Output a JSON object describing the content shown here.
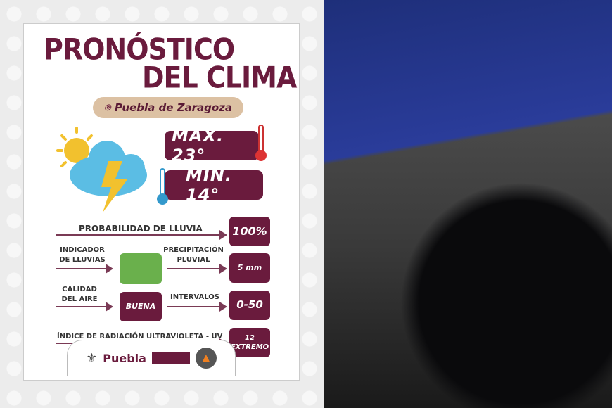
{
  "title": {
    "line1": "PRONÓSTICO",
    "line2": "DEL CLIMA"
  },
  "location": "Puebla de Zaragoza",
  "temperature": {
    "max": "MÁX. 23°",
    "min": "MÍN. 14°"
  },
  "rows": {
    "rain_probability": {
      "label": "PROBABILIDAD DE LLUVIA",
      "value": "100%"
    },
    "rain_indicator": {
      "label": "INDICADOR DE LLUVIAS",
      "color": "#6ab04c"
    },
    "precipitation": {
      "label": "PRECIPITACIÓN PLUVIAL",
      "value": "5 mm"
    },
    "air_quality": {
      "label": "CALIDAD DEL AIRE",
      "value": "BUENA"
    },
    "intervals": {
      "label": "INTERVALOS",
      "value": "0-50"
    },
    "uv": {
      "label": "ÍNDICE DE RADIACIÓN ULTRAVIOLETA - UV",
      "value": "12",
      "level": "EXTREMO"
    }
  },
  "footer": {
    "brand": "Puebla"
  },
  "colors": {
    "maroon": "#6a1b3d",
    "tan": "#dcc1a3"
  }
}
